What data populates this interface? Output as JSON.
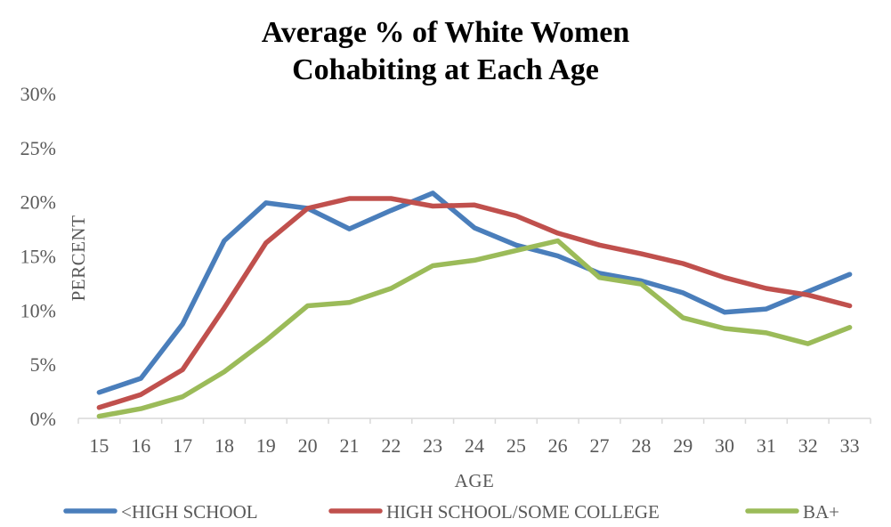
{
  "chart_data": {
    "type": "line",
    "title_line1": "Average % of White Women",
    "title_line2": "Cohabiting at Each Age",
    "xlabel": "AGE",
    "ylabel": "PERCENT",
    "ylim": [
      0,
      30
    ],
    "yticks": [
      "0%",
      "5%",
      "10%",
      "15%",
      "20%",
      "25%",
      "30%"
    ],
    "x": [
      "15",
      "16",
      "17",
      "18",
      "19",
      "20",
      "21",
      "22",
      "23",
      "24",
      "25",
      "26",
      "27",
      "28",
      "29",
      "30",
      "31",
      "32",
      "33"
    ],
    "grid": false,
    "legend_position": "bottom",
    "series": [
      {
        "name": "<HIGH SCHOOL",
        "color": "#4a7ebb",
        "values": [
          2.4,
          3.7,
          8.7,
          16.4,
          19.9,
          19.4,
          17.5,
          19.2,
          20.8,
          17.6,
          16.0,
          15.0,
          13.4,
          12.7,
          11.6,
          9.8,
          10.1,
          11.7,
          13.3
        ]
      },
      {
        "name": "HIGH SCHOOL/SOME COLLEGE",
        "color": "#c0504d",
        "values": [
          1.0,
          2.2,
          4.5,
          10.2,
          16.2,
          19.4,
          20.3,
          20.3,
          19.6,
          19.7,
          18.7,
          17.1,
          16.0,
          15.2,
          14.3,
          13.0,
          12.0,
          11.4,
          10.4
        ]
      },
      {
        "name": "BA+",
        "color": "#9bbb59",
        "values": [
          0.2,
          0.9,
          2.0,
          4.3,
          7.2,
          10.4,
          10.7,
          12.0,
          14.1,
          14.6,
          15.5,
          16.4,
          13.0,
          12.4,
          9.3,
          8.3,
          7.9,
          6.9,
          8.4
        ]
      }
    ]
  }
}
